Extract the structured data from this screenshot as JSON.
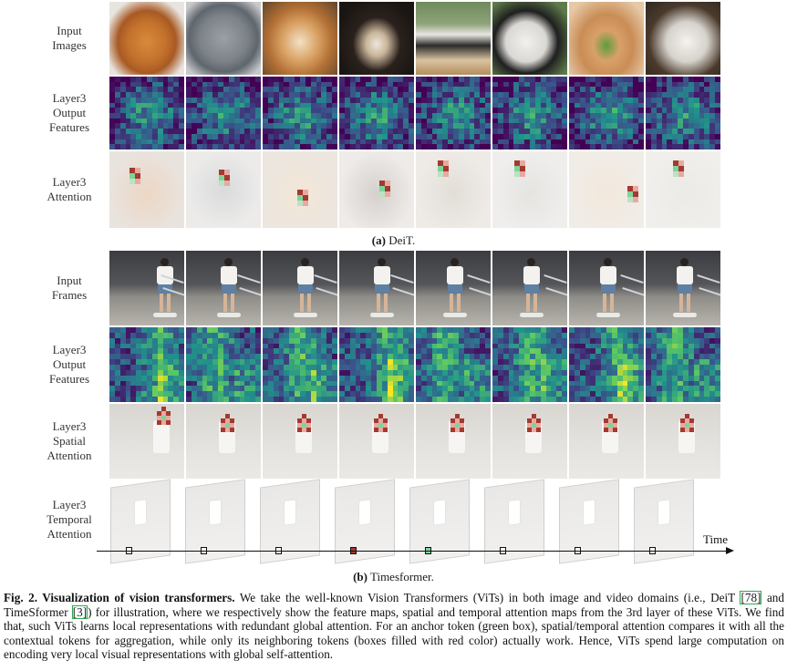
{
  "figure_a": {
    "rows": [
      {
        "label_lines": [
          "Input",
          "Images"
        ]
      },
      {
        "label_lines": [
          "Layer3",
          "Output",
          "Features"
        ]
      },
      {
        "label_lines": [
          "Layer3",
          "Attention"
        ]
      }
    ],
    "caption_letter": "(a)",
    "caption_text": "DeiT."
  },
  "figure_b": {
    "rows": [
      {
        "label_lines": [
          "Input",
          "Frames"
        ]
      },
      {
        "label_lines": [
          "Layer3",
          "Output",
          "Features"
        ]
      },
      {
        "label_lines": [
          "Layer3",
          "Spatial",
          "Attention"
        ]
      },
      {
        "label_lines": [
          "Layer3",
          "Temporal",
          "Attention"
        ]
      }
    ],
    "time_label": "Time",
    "caption_letter": "(b)",
    "caption_text": "Timesformer."
  },
  "caption": {
    "lead": "Fig. 2. Visualization of vision transformers.",
    "part1": " We take the well-known Vision Transformers (ViTs) in both image and video domains (i.e., DeiT ",
    "cite1": "[78]",
    "part2": " and TimeSformer ",
    "cite2": "[3]",
    "part3": ") for illustration, where we respectively show the feature maps, spatial and temporal attention maps from the 3rd layer of these ViTs. We find that, such ViTs learns local representations with redundant global attention. For an anchor token (green box), spatial/temporal attention compares it with all the contextual tokens for aggregation, while only its neighboring tokens (boxes filled with red color) actually work. Hence, ViTs spend large computation on encoding very local visual representations with global self-attention."
  },
  "colors": {
    "anchor_green": "#7fd39a",
    "neighbor_red": "#a23a30",
    "viridis_low": "#2c3f8a",
    "viridis_high": "#e4e41c"
  },
  "input_images": [
    "orange-cat",
    "grey-tabby-cat",
    "shiba-dog",
    "black-puppy",
    "panda-on-stump",
    "panda-lying",
    "rabbit-eating",
    "white-rabbit"
  ]
}
